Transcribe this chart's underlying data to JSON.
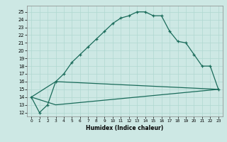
{
  "xlabel": "Humidex (Indice chaleur)",
  "bg_color": "#cde8e4",
  "grid_color": "#b0d8d0",
  "line_color": "#1a6b5a",
  "xlim": [
    -0.5,
    23.5
  ],
  "ylim": [
    11.5,
    25.8
  ],
  "xticks": [
    0,
    1,
    2,
    3,
    4,
    5,
    6,
    7,
    8,
    9,
    10,
    11,
    12,
    13,
    14,
    15,
    16,
    17,
    18,
    19,
    20,
    21,
    22,
    23
  ],
  "yticks": [
    12,
    13,
    14,
    15,
    16,
    17,
    18,
    19,
    20,
    21,
    22,
    23,
    24,
    25
  ],
  "line1_x": [
    0,
    1,
    2,
    3,
    4,
    5,
    6,
    7,
    8,
    9,
    10,
    11,
    12,
    13,
    14,
    15,
    16,
    17,
    18,
    19,
    20,
    21,
    22,
    23
  ],
  "line1_y": [
    14,
    12,
    13,
    16,
    17,
    18.5,
    19.5,
    20.5,
    21.5,
    22.5,
    23.5,
    24.2,
    24.5,
    25.0,
    25.0,
    24.5,
    24.5,
    22.5,
    21.2,
    21.0,
    19.5,
    18,
    18,
    15
  ],
  "line2_x": [
    0,
    3,
    23
  ],
  "line2_y": [
    14,
    16,
    15
  ],
  "line3_x": [
    0,
    3,
    23
  ],
  "line3_y": [
    14,
    13,
    15
  ]
}
